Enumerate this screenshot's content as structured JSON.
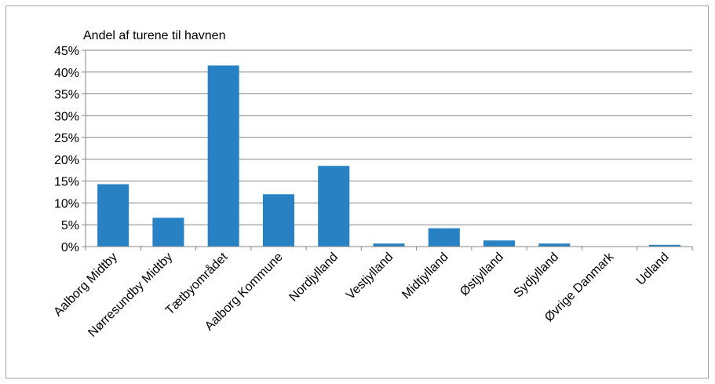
{
  "chart_data": {
    "type": "bar",
    "title": "Andel af turene til havnen",
    "xlabel": "",
    "ylabel": "",
    "categories": [
      "Aalborg Midtby",
      "Nørresundby Midtby",
      "Tætbyområdet",
      "Aalborg Kommune",
      "Nordjylland",
      "Vestjylland",
      "Midtjylland",
      "Østjylland",
      "Sydjylland",
      "Øvrige Danmark",
      "Udland"
    ],
    "values": [
      14.3,
      6.6,
      41.5,
      12.0,
      18.5,
      0.7,
      4.2,
      1.4,
      0.7,
      0.0,
      0.4
    ],
    "ylim": [
      0,
      45
    ],
    "yticks": [
      "0%",
      "5%",
      "10%",
      "15%",
      "20%",
      "25%",
      "30%",
      "35%",
      "40%",
      "45%"
    ],
    "grid": true,
    "bar_color": "#2781C2"
  }
}
